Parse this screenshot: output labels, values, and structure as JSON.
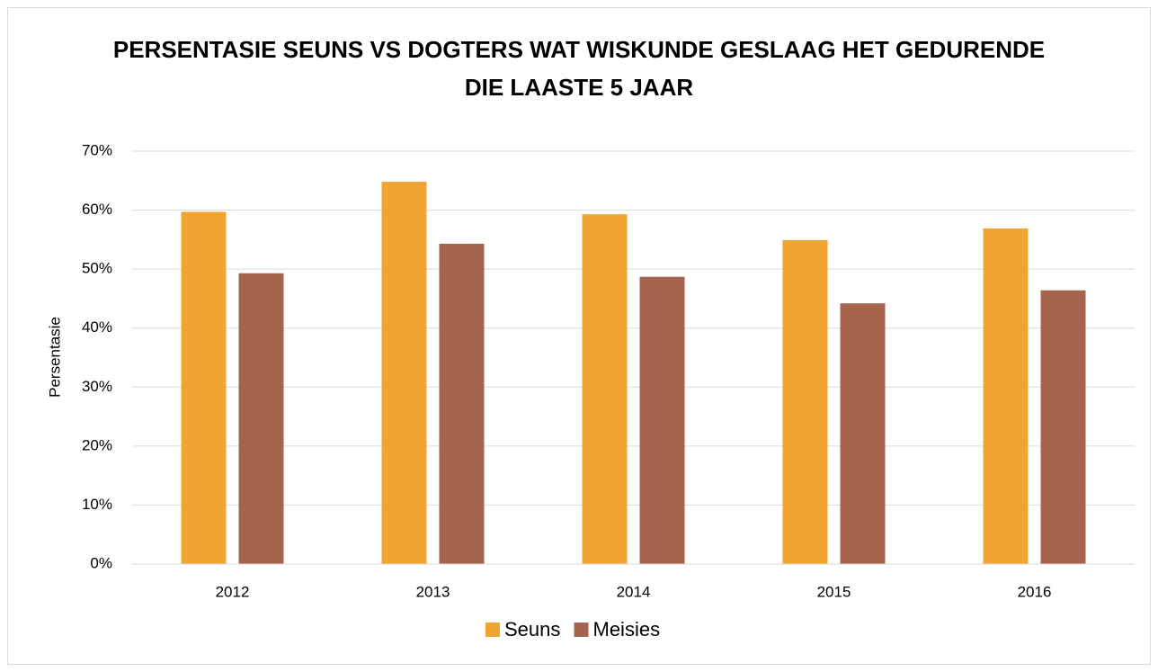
{
  "chart_data": {
    "type": "bar",
    "title": "PERSENTASIE SEUNS VS DOGTERS WAT WISKUNDE GESLAAG HET GEDURENDE DIE LAASTE 5 JAAR",
    "y_label": "Persentasie",
    "categories": [
      "2012",
      "2013",
      "2014",
      "2015",
      "2016"
    ],
    "series": [
      {
        "name": "Seuns",
        "color": "#f0a431",
        "values": [
          59.7,
          64.8,
          59.3,
          54.9,
          56.9
        ]
      },
      {
        "name": "Meisies",
        "color": "#a5644e",
        "values": [
          49.3,
          54.3,
          48.7,
          44.2,
          46.4
        ]
      }
    ],
    "ylim": [
      0,
      70
    ],
    "yticks": [
      {
        "value": 0,
        "label": "0%"
      },
      {
        "value": 10,
        "label": "10%"
      },
      {
        "value": 20,
        "label": "20%"
      },
      {
        "value": 30,
        "label": "30%"
      },
      {
        "value": 40,
        "label": "40%"
      },
      {
        "value": 50,
        "label": "50%"
      },
      {
        "value": 60,
        "label": "60%"
      },
      {
        "value": 70,
        "label": "70%"
      }
    ],
    "grid": true,
    "legend": "bottom"
  }
}
